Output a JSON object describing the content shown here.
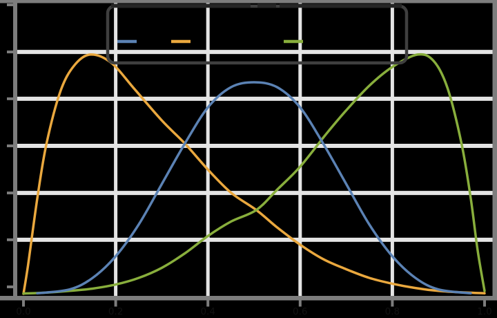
{
  "chart_data": {
    "type": "line",
    "title_legible": false,
    "note": "figure text is rendered nearly black on a transparent/black background; title and legend labels are clipped/illegible",
    "x_axis": {
      "min": 0.0,
      "max": 1.0,
      "ticks": [
        0.0,
        0.2,
        0.4,
        0.6,
        0.8,
        1.0
      ],
      "tick_labels": [
        "0.0",
        "0.2",
        "0.4",
        "0.6",
        "0.8",
        "1.0"
      ],
      "gridline_ticks": [
        0.2,
        0.4,
        0.6,
        0.8
      ]
    },
    "y_axis": {
      "min": 0.0,
      "max": 1.0,
      "units": "relative height (tick labels not legible in image)",
      "ticks": [
        0.024,
        0.187,
        0.349,
        0.512,
        0.675,
        0.837,
        1.0
      ],
      "gridline_ticks": [
        0.187,
        0.349,
        0.512,
        0.675,
        0.837
      ],
      "tick_labels_visible": false
    },
    "grid": true,
    "legend": {
      "position": "upper center",
      "frame": true,
      "entries": [
        {
          "label": "",
          "color": "#5b82b4"
        },
        {
          "label": "",
          "color": "#eaa83e"
        },
        {
          "label": "",
          "color": "#88ae3c"
        }
      ]
    },
    "series": [
      {
        "name": "blue-curve",
        "color": "#5b82b4",
        "peak_x": 0.5,
        "peak_y": 0.73,
        "points": [
          [
            0.03,
            0.002
          ],
          [
            0.1,
            0.015
          ],
          [
            0.15,
            0.055
          ],
          [
            0.2,
            0.13
          ],
          [
            0.25,
            0.24
          ],
          [
            0.3,
            0.38
          ],
          [
            0.35,
            0.52
          ],
          [
            0.4,
            0.645
          ],
          [
            0.45,
            0.715
          ],
          [
            0.5,
            0.732
          ],
          [
            0.55,
            0.715
          ],
          [
            0.6,
            0.645
          ],
          [
            0.65,
            0.52
          ],
          [
            0.7,
            0.38
          ],
          [
            0.75,
            0.24
          ],
          [
            0.8,
            0.13
          ],
          [
            0.85,
            0.055
          ],
          [
            0.9,
            0.015
          ],
          [
            0.97,
            0.002
          ]
        ]
      },
      {
        "name": "gold-curve",
        "color": "#eaa83e",
        "peak_x": 0.15,
        "peak_y": 0.83,
        "points": [
          [
            0.0,
            0.0
          ],
          [
            0.01,
            0.1
          ],
          [
            0.03,
            0.33
          ],
          [
            0.05,
            0.52
          ],
          [
            0.08,
            0.7
          ],
          [
            0.11,
            0.79
          ],
          [
            0.145,
            0.828
          ],
          [
            0.19,
            0.8
          ],
          [
            0.24,
            0.71
          ],
          [
            0.3,
            0.6
          ],
          [
            0.35,
            0.52
          ],
          [
            0.4,
            0.43
          ],
          [
            0.45,
            0.35
          ],
          [
            0.505,
            0.29
          ],
          [
            0.55,
            0.23
          ],
          [
            0.6,
            0.17
          ],
          [
            0.65,
            0.12
          ],
          [
            0.7,
            0.085
          ],
          [
            0.75,
            0.055
          ],
          [
            0.8,
            0.035
          ],
          [
            0.85,
            0.02
          ],
          [
            0.9,
            0.01
          ],
          [
            0.95,
            0.005
          ],
          [
            1.0,
            0.002
          ]
        ]
      },
      {
        "name": "green-curve",
        "color": "#88ae3c",
        "peak_x": 0.85,
        "peak_y": 0.83,
        "points": [
          [
            0.0,
            0.001
          ],
          [
            0.05,
            0.004
          ],
          [
            0.1,
            0.01
          ],
          [
            0.15,
            0.018
          ],
          [
            0.2,
            0.032
          ],
          [
            0.25,
            0.055
          ],
          [
            0.3,
            0.09
          ],
          [
            0.35,
            0.14
          ],
          [
            0.4,
            0.2
          ],
          [
            0.45,
            0.25
          ],
          [
            0.505,
            0.29
          ],
          [
            0.55,
            0.36
          ],
          [
            0.6,
            0.44
          ],
          [
            0.655,
            0.55
          ],
          [
            0.7,
            0.635
          ],
          [
            0.75,
            0.72
          ],
          [
            0.8,
            0.785
          ],
          [
            0.855,
            0.828
          ],
          [
            0.89,
            0.805
          ],
          [
            0.92,
            0.71
          ],
          [
            0.95,
            0.52
          ],
          [
            0.97,
            0.33
          ],
          [
            0.985,
            0.15
          ],
          [
            1.0,
            0.01
          ]
        ]
      }
    ]
  },
  "colors": {
    "background": "#000000",
    "gridline": "#e4e4e4",
    "spine": "#7d7d7d",
    "tick": "#7d7d7d",
    "tick_label": "#121212",
    "legend_frame": "#3f3f3f",
    "clipped_title_text": "#262626",
    "legend_label_text": "#000000"
  }
}
